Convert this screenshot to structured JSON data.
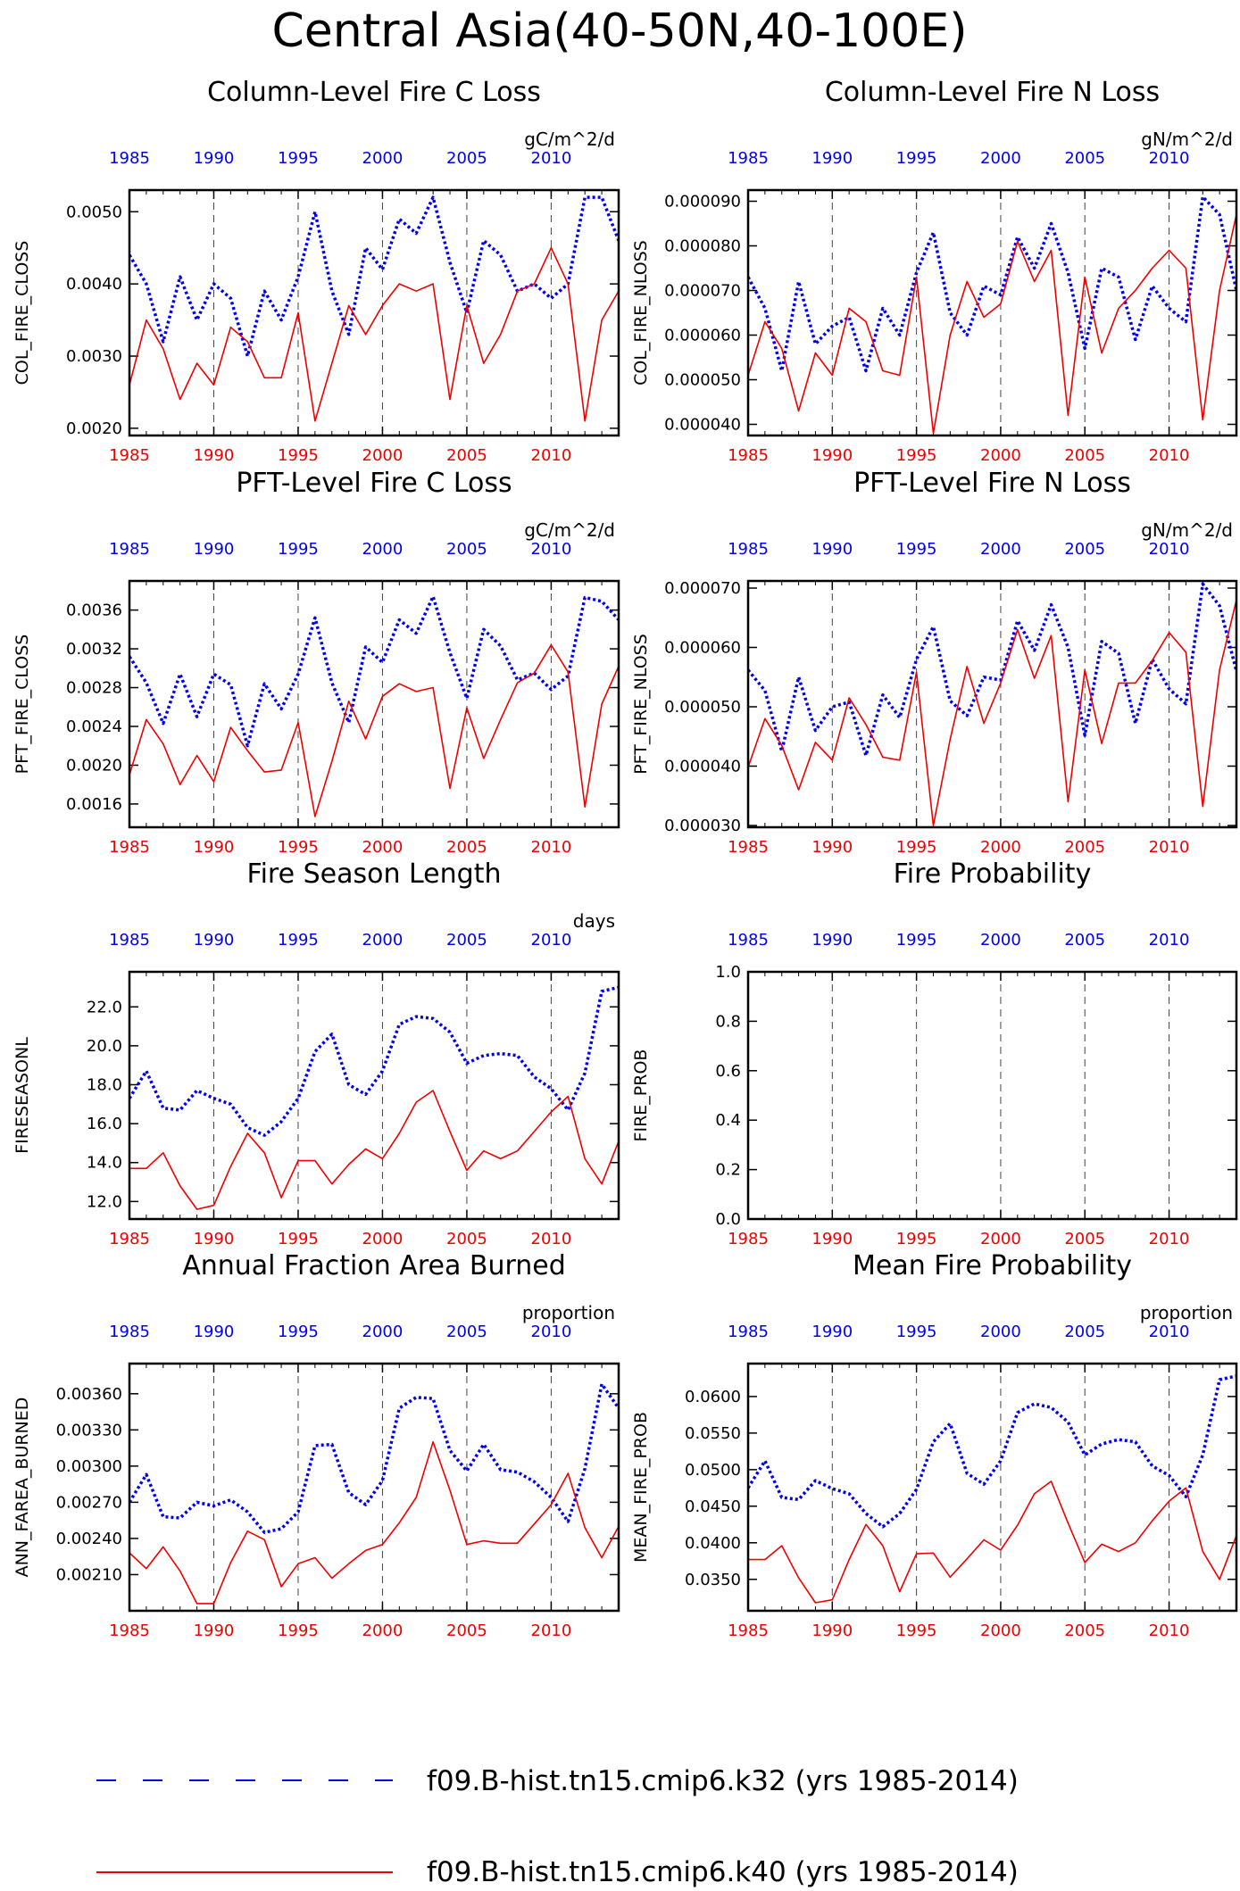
{
  "title": "Central Asia(40-50N,40-100E)",
  "colors": {
    "blue": "#0000ee",
    "red": "#ee0000"
  },
  "legend": [
    {
      "name": "f09.B-hist.tn15.cmip6.k32 (yrs 1985-2014)",
      "color": "#0000ee",
      "style": "dashed"
    },
    {
      "name": "f09.B-hist.tn15.cmip6.k40 (yrs 1985-2014)",
      "color": "#ee0000",
      "style": "solid"
    }
  ],
  "chart_data": [
    {
      "type": "line",
      "title": "Column-Level Fire C Loss",
      "units": "gC/m^2/d",
      "ylabel": "COL_FIRE_CLOSS",
      "xlim": [
        1985,
        2014
      ],
      "ylim": [
        0.0019,
        0.0053
      ],
      "yticks": [
        0.002,
        0.003,
        0.004,
        0.005
      ],
      "ytick_labels": [
        "0.0020",
        "0.0030",
        "0.0040",
        "0.0050"
      ],
      "xticks": [
        1985,
        1990,
        1995,
        2000,
        2005,
        2010
      ],
      "x": [
        1985,
        1986,
        1987,
        1988,
        1989,
        1990,
        1991,
        1992,
        1993,
        1994,
        1995,
        1996,
        1997,
        1998,
        1999,
        2000,
        2001,
        2002,
        2003,
        2004,
        2005,
        2006,
        2007,
        2008,
        2009,
        2010,
        2011,
        2012,
        2013,
        2014
      ],
      "series": [
        {
          "name": "f09.B-hist.tn15.cmip6.k32 (yrs 1985-2014)",
          "color": "#0000ee",
          "style": "dashed",
          "values": [
            0.0044,
            0.004,
            0.0032,
            0.0041,
            0.0035,
            0.004,
            0.0038,
            0.003,
            0.0039,
            0.0035,
            0.0041,
            0.005,
            0.0039,
            0.0033,
            0.0045,
            0.0042,
            0.0049,
            0.0047,
            0.0052,
            0.0043,
            0.0036,
            0.0046,
            0.0044,
            0.0039,
            0.004,
            0.0038,
            0.004,
            0.0052,
            0.0052,
            0.0046
          ]
        },
        {
          "name": "f09.B-hist.tn15.cmip6.k40 (yrs 1985-2014)",
          "color": "#ee0000",
          "style": "solid",
          "values": [
            0.0026,
            0.0035,
            0.0031,
            0.0024,
            0.0029,
            0.0026,
            0.0034,
            0.0032,
            0.0027,
            0.0027,
            0.0036,
            0.0021,
            0.0029,
            0.0037,
            0.0033,
            0.0037,
            0.004,
            0.0039,
            0.004,
            0.0024,
            0.0037,
            0.0029,
            0.0033,
            0.0039,
            0.004,
            0.0045,
            0.004,
            0.0021,
            0.0035,
            0.0039
          ]
        }
      ]
    },
    {
      "type": "line",
      "title": "Column-Level Fire N Loss",
      "units": "gN/m^2/d",
      "ylabel": "COL_FIRE_NLOSS",
      "xlim": [
        1985,
        2014
      ],
      "ylim": [
        3.75e-05,
        9.25e-05
      ],
      "yticks": [
        4e-05,
        5e-05,
        6e-05,
        7e-05,
        8e-05,
        9e-05
      ],
      "ytick_labels": [
        "0.000040",
        "0.000050",
        "0.000060",
        "0.000070",
        "0.000080",
        "0.000090"
      ],
      "xticks": [
        1985,
        1990,
        1995,
        2000,
        2005,
        2010
      ],
      "x": [
        1985,
        1986,
        1987,
        1988,
        1989,
        1990,
        1991,
        1992,
        1993,
        1994,
        1995,
        1996,
        1997,
        1998,
        1999,
        2000,
        2001,
        2002,
        2003,
        2004,
        2005,
        2006,
        2007,
        2008,
        2009,
        2010,
        2011,
        2012,
        2013,
        2014
      ],
      "series": [
        {
          "name": "f09.B-hist.tn15.cmip6.k32 (yrs 1985-2014)",
          "color": "#0000ee",
          "style": "dashed",
          "values": [
            7.3e-05,
            6.6e-05,
            5.2e-05,
            7.2e-05,
            5.8e-05,
            6.2e-05,
            6.4e-05,
            5.2e-05,
            6.6e-05,
            6e-05,
            7.4e-05,
            8.3e-05,
            6.5e-05,
            6e-05,
            7.1e-05,
            6.9e-05,
            8.2e-05,
            7.5e-05,
            8.5e-05,
            7.4e-05,
            5.7e-05,
            7.5e-05,
            7.3e-05,
            5.9e-05,
            7.1e-05,
            6.6e-05,
            6.3e-05,
            9.1e-05,
            8.7e-05,
            7e-05
          ]
        },
        {
          "name": "f09.B-hist.tn15.cmip6.k40 (yrs 1985-2014)",
          "color": "#ee0000",
          "style": "solid",
          "values": [
            5.1e-05,
            6.3e-05,
            5.7e-05,
            4.3e-05,
            5.6e-05,
            5.1e-05,
            6.6e-05,
            6.3e-05,
            5.2e-05,
            5.1e-05,
            7.3e-05,
            3.8e-05,
            6e-05,
            7.2e-05,
            6.4e-05,
            6.7e-05,
            8.1e-05,
            7.2e-05,
            7.9e-05,
            4.2e-05,
            7.3e-05,
            5.6e-05,
            6.6e-05,
            7e-05,
            7.5e-05,
            7.9e-05,
            7.5e-05,
            4.1e-05,
            7e-05,
            8.7e-05
          ]
        }
      ]
    },
    {
      "type": "line",
      "title": "PFT-Level Fire C Loss",
      "units": "gC/m^2/d",
      "ylabel": "PFT_FIRE_CLOSS",
      "xlim": [
        1985,
        2014
      ],
      "ylim": [
        0.00136,
        0.0039
      ],
      "yticks": [
        0.0016,
        0.002,
        0.0024,
        0.0028,
        0.0032,
        0.0036
      ],
      "ytick_labels": [
        "0.0016",
        "0.0020",
        "0.0024",
        "0.0028",
        "0.0032",
        "0.0036"
      ],
      "xticks": [
        1985,
        1990,
        1995,
        2000,
        2005,
        2010
      ],
      "x": [
        1985,
        1986,
        1987,
        1988,
        1989,
        1990,
        1991,
        1992,
        1993,
        1994,
        1995,
        1996,
        1997,
        1998,
        1999,
        2000,
        2001,
        2002,
        2003,
        2004,
        2005,
        2006,
        2007,
        2008,
        2009,
        2010,
        2011,
        2012,
        2013,
        2014
      ],
      "series": [
        {
          "name": "f09.B-hist.tn15.cmip6.k32 (yrs 1985-2014)",
          "color": "#0000ee",
          "style": "dashed",
          "values": [
            0.00312,
            0.00285,
            0.00243,
            0.00294,
            0.0025,
            0.00294,
            0.00283,
            0.0022,
            0.00284,
            0.00258,
            0.00294,
            0.00352,
            0.00285,
            0.00244,
            0.00322,
            0.00306,
            0.0035,
            0.00336,
            0.00374,
            0.00316,
            0.00269,
            0.0034,
            0.00323,
            0.00288,
            0.00295,
            0.00278,
            0.00292,
            0.00373,
            0.00369,
            0.0035
          ]
        },
        {
          "name": "f09.B-hist.tn15.cmip6.k40 (yrs 1985-2014)",
          "color": "#ee0000",
          "style": "solid",
          "values": [
            0.0019,
            0.00247,
            0.00222,
            0.0018,
            0.0021,
            0.00183,
            0.00239,
            0.00215,
            0.00193,
            0.00195,
            0.00244,
            0.00147,
            0.00204,
            0.00266,
            0.00227,
            0.00271,
            0.00284,
            0.00276,
            0.0028,
            0.00176,
            0.00259,
            0.00207,
            0.00247,
            0.00285,
            0.00295,
            0.00324,
            0.00296,
            0.00157,
            0.00263,
            0.00302
          ]
        }
      ]
    },
    {
      "type": "line",
      "title": "PFT-Level Fire N Loss",
      "units": "gN/m^2/d",
      "ylabel": "PFT_FIRE_NLOSS",
      "xlim": [
        1985,
        2014
      ],
      "ylim": [
        2.97e-05,
        7.12e-05
      ],
      "yticks": [
        3e-05,
        4e-05,
        5e-05,
        6e-05,
        7e-05
      ],
      "ytick_labels": [
        "0.000030",
        "0.000040",
        "0.000050",
        "0.000060",
        "0.000070"
      ],
      "xticks": [
        1985,
        1990,
        1995,
        2000,
        2005,
        2010
      ],
      "x": [
        1985,
        1986,
        1987,
        1988,
        1989,
        1990,
        1991,
        1992,
        1993,
        1994,
        1995,
        1996,
        1997,
        1998,
        1999,
        2000,
        2001,
        2002,
        2003,
        2004,
        2005,
        2006,
        2007,
        2008,
        2009,
        2010,
        2011,
        2012,
        2013,
        2014
      ],
      "series": [
        {
          "name": "f09.B-hist.tn15.cmip6.k32 (yrs 1985-2014)",
          "color": "#0000ee",
          "style": "dashed",
          "values": [
            5.62e-05,
            5.27e-05,
            4.25e-05,
            5.5e-05,
            4.6e-05,
            5e-05,
            5.08e-05,
            4.18e-05,
            5.2e-05,
            4.82e-05,
            5.8e-05,
            6.35e-05,
            5.1e-05,
            4.85e-05,
            5.5e-05,
            5.45e-05,
            6.45e-05,
            5.95e-05,
            6.72e-05,
            6e-05,
            4.52e-05,
            6.1e-05,
            5.9e-05,
            4.72e-05,
            5.8e-05,
            5.3e-05,
            5.05e-05,
            7.07e-05,
            6.7e-05,
            5.6e-05
          ]
        },
        {
          "name": "f09.B-hist.tn15.cmip6.k40 (yrs 1985-2014)",
          "color": "#ee0000",
          "style": "solid",
          "values": [
            3.98e-05,
            4.8e-05,
            4.35e-05,
            3.6e-05,
            4.4e-05,
            4.1e-05,
            5.15e-05,
            4.7e-05,
            4.15e-05,
            4.1e-05,
            5.58e-05,
            3e-05,
            4.45e-05,
            5.68e-05,
            4.72e-05,
            5.4e-05,
            6.3e-05,
            5.48e-05,
            6.2e-05,
            3.4e-05,
            5.62e-05,
            4.38e-05,
            5.4e-05,
            5.4e-05,
            5.78e-05,
            6.25e-05,
            5.92e-05,
            3.32e-05,
            5.62e-05,
            6.8e-05
          ]
        }
      ]
    },
    {
      "type": "line",
      "title": "Fire Season Length",
      "units": "days",
      "ylabel": "FIRESEASONL",
      "xlim": [
        1985,
        2014
      ],
      "ylim": [
        11.1,
        23.8
      ],
      "yticks": [
        12,
        14,
        16,
        18,
        20,
        22
      ],
      "ytick_labels": [
        "12.0",
        "14.0",
        "16.0",
        "18.0",
        "20.0",
        "22.0"
      ],
      "xticks": [
        1985,
        1990,
        1995,
        2000,
        2005,
        2010
      ],
      "x": [
        1985,
        1986,
        1987,
        1988,
        1989,
        1990,
        1991,
        1992,
        1993,
        1994,
        1995,
        1996,
        1997,
        1998,
        1999,
        2000,
        2001,
        2002,
        2003,
        2004,
        2005,
        2006,
        2007,
        2008,
        2009,
        2010,
        2011,
        2012,
        2013,
        2014
      ],
      "series": [
        {
          "name": "f09.B-hist.tn15.cmip6.k32 (yrs 1985-2014)",
          "color": "#0000ee",
          "style": "dashed",
          "values": [
            17.3,
            18.7,
            16.8,
            16.7,
            17.7,
            17.3,
            17.0,
            15.8,
            15.4,
            16.1,
            17.3,
            19.7,
            20.6,
            18.0,
            17.5,
            18.7,
            21.1,
            21.5,
            21.4,
            20.7,
            19.1,
            19.5,
            19.6,
            19.5,
            18.4,
            17.8,
            16.7,
            18.6,
            22.8,
            23.0
          ]
        },
        {
          "name": "f09.B-hist.tn15.cmip6.k40 (yrs 1985-2014)",
          "color": "#ee0000",
          "style": "solid",
          "values": [
            13.7,
            13.7,
            14.5,
            12.8,
            11.6,
            11.8,
            13.8,
            15.5,
            14.5,
            12.2,
            14.1,
            14.1,
            12.9,
            13.9,
            14.7,
            14.2,
            15.5,
            17.1,
            17.7,
            15.6,
            13.6,
            14.6,
            14.2,
            14.6,
            15.6,
            16.6,
            17.4,
            14.2,
            12.9,
            15.1
          ]
        }
      ]
    },
    {
      "type": "line",
      "title": "Fire Probability",
      "units": "",
      "ylabel": "FIRE_PROB",
      "xlim": [
        1985,
        2014
      ],
      "ylim": [
        0.0,
        1.0
      ],
      "yticks": [
        0.0,
        0.2,
        0.4,
        0.6,
        0.8,
        1.0
      ],
      "ytick_labels": [
        "0.0",
        "0.2",
        "0.4",
        "0.6",
        "0.8",
        "1.0"
      ],
      "xticks": [
        1985,
        1990,
        1995,
        2000,
        2005,
        2010
      ],
      "x": [],
      "series": []
    },
    {
      "type": "line",
      "title": "Annual Fraction Area Burned",
      "units": "proportion",
      "ylabel": "ANN_FAREA_BURNED",
      "xlim": [
        1985,
        2014
      ],
      "ylim": [
        0.0018,
        0.00385
      ],
      "yticks": [
        0.0021,
        0.0024,
        0.0027,
        0.003,
        0.0033,
        0.0036
      ],
      "ytick_labels": [
        "0.00210",
        "0.00240",
        "0.00270",
        "0.00300",
        "0.00330",
        "0.00360"
      ],
      "xticks": [
        1985,
        1990,
        1995,
        2000,
        2005,
        2010
      ],
      "x": [
        1985,
        1986,
        1987,
        1988,
        1989,
        1990,
        1991,
        1992,
        1993,
        1994,
        1995,
        1996,
        1997,
        1998,
        1999,
        2000,
        2001,
        2002,
        2003,
        2004,
        2005,
        2006,
        2007,
        2008,
        2009,
        2010,
        2011,
        2012,
        2013,
        2014
      ],
      "series": [
        {
          "name": "f09.B-hist.tn15.cmip6.k32 (yrs 1985-2014)",
          "color": "#0000ee",
          "style": "dashed",
          "values": [
            0.0027,
            0.00293,
            0.00258,
            0.00257,
            0.0027,
            0.00267,
            0.00272,
            0.00262,
            0.00245,
            0.00248,
            0.00262,
            0.00317,
            0.00318,
            0.00278,
            0.00268,
            0.00288,
            0.00348,
            0.00357,
            0.00356,
            0.00313,
            0.00296,
            0.00318,
            0.00297,
            0.00295,
            0.00287,
            0.00274,
            0.00254,
            0.00298,
            0.00368,
            0.00348
          ]
        },
        {
          "name": "f09.B-hist.tn15.cmip6.k40 (yrs 1985-2014)",
          "color": "#ee0000",
          "style": "solid",
          "values": [
            0.00228,
            0.00215,
            0.00233,
            0.00213,
            0.00186,
            0.00186,
            0.0022,
            0.00246,
            0.00239,
            0.002,
            0.00219,
            0.00224,
            0.00207,
            0.00219,
            0.0023,
            0.00235,
            0.00253,
            0.00274,
            0.0032,
            0.0028,
            0.00235,
            0.00238,
            0.00236,
            0.00236,
            0.00252,
            0.00268,
            0.00294,
            0.00249,
            0.00224,
            0.0025
          ]
        }
      ]
    },
    {
      "type": "line",
      "title": "Mean Fire Probability",
      "units": "proportion",
      "ylabel": "MEAN_FIRE_PROB",
      "xlim": [
        1985,
        2014
      ],
      "ylim": [
        0.0307,
        0.0645
      ],
      "yticks": [
        0.035,
        0.04,
        0.045,
        0.05,
        0.055,
        0.06
      ],
      "ytick_labels": [
        "0.0350",
        "0.0400",
        "0.0450",
        "0.0500",
        "0.0550",
        "0.0600"
      ],
      "xticks": [
        1985,
        1990,
        1995,
        2000,
        2005,
        2010
      ],
      "x": [
        1985,
        1986,
        1987,
        1988,
        1989,
        1990,
        1991,
        1992,
        1993,
        1994,
        1995,
        1996,
        1997,
        1998,
        1999,
        2000,
        2001,
        2002,
        2003,
        2004,
        2005,
        2006,
        2007,
        2008,
        2009,
        2010,
        2011,
        2012,
        2013,
        2014
      ],
      "series": [
        {
          "name": "f09.B-hist.tn15.cmip6.k32 (yrs 1985-2014)",
          "color": "#0000ee",
          "style": "dashed",
          "values": [
            0.0475,
            0.0512,
            0.0462,
            0.0459,
            0.0485,
            0.0474,
            0.0467,
            0.044,
            0.0422,
            0.044,
            0.0473,
            0.0538,
            0.0563,
            0.0495,
            0.048,
            0.0512,
            0.0578,
            0.059,
            0.0585,
            0.0565,
            0.052,
            0.0535,
            0.0541,
            0.0538,
            0.0505,
            0.0492,
            0.0463,
            0.052,
            0.0623,
            0.0628
          ]
        },
        {
          "name": "f09.B-hist.tn15.cmip6.k40 (yrs 1985-2014)",
          "color": "#ee0000",
          "style": "solid",
          "values": [
            0.0377,
            0.0377,
            0.0396,
            0.0352,
            0.0318,
            0.0322,
            0.0377,
            0.0425,
            0.0396,
            0.0333,
            0.0385,
            0.0386,
            0.0353,
            0.0378,
            0.0404,
            0.039,
            0.0424,
            0.0467,
            0.0484,
            0.0427,
            0.0373,
            0.0398,
            0.0388,
            0.04,
            0.043,
            0.0457,
            0.0475,
            0.0388,
            0.035,
            0.041
          ]
        }
      ]
    }
  ]
}
